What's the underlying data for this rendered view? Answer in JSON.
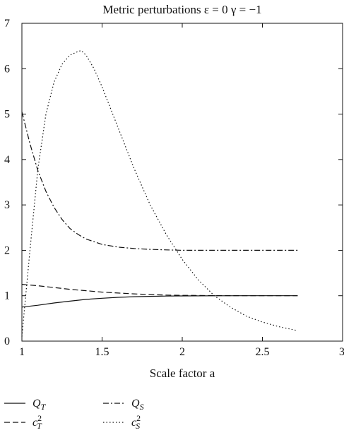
{
  "chart_data": {
    "type": "line",
    "title": "Metric perturbations    ε = 0   γ = −1",
    "xlabel": "Scale factor a",
    "ylabel": "",
    "xlim": [
      1,
      3
    ],
    "ylim": [
      0,
      7
    ],
    "xticks": [
      "1",
      "1.5",
      "2",
      "2.5",
      "3"
    ],
    "yticks": [
      "0",
      "1",
      "2",
      "3",
      "4",
      "5",
      "6",
      "7"
    ],
    "grid": false,
    "legend_position": "bottom",
    "series": [
      {
        "name": "Q_T",
        "label_main": "Q",
        "label_sub": "T",
        "label_sup": "",
        "style": "solid",
        "x": [
          1.0,
          1.1,
          1.2,
          1.3,
          1.4,
          1.5,
          1.6,
          1.7,
          1.8,
          1.9,
          2.0,
          2.2,
          2.4,
          2.6,
          2.72
        ],
        "y": [
          0.75,
          0.79,
          0.84,
          0.88,
          0.92,
          0.945,
          0.965,
          0.978,
          0.987,
          0.993,
          0.996,
          0.999,
          1.0,
          1.0,
          1.0
        ]
      },
      {
        "name": "c_T^2",
        "label_main": "c",
        "label_sub": "T",
        "label_sup": "2",
        "style": "dashed",
        "x": [
          1.0,
          1.1,
          1.2,
          1.3,
          1.4,
          1.5,
          1.6,
          1.7,
          1.8,
          1.9,
          2.0,
          2.2,
          2.4,
          2.6,
          2.72
        ],
        "y": [
          1.25,
          1.22,
          1.18,
          1.14,
          1.11,
          1.08,
          1.06,
          1.04,
          1.025,
          1.015,
          1.008,
          1.003,
          1.0,
          1.0,
          1.0
        ]
      },
      {
        "name": "Q_S",
        "label_main": "Q",
        "label_sub": "S",
        "label_sup": "",
        "style": "dashdot",
        "x": [
          1.0,
          1.05,
          1.1,
          1.15,
          1.2,
          1.25,
          1.3,
          1.35,
          1.4,
          1.5,
          1.6,
          1.7,
          1.8,
          1.9,
          2.0,
          2.2,
          2.4,
          2.6,
          2.72
        ],
        "y": [
          5.05,
          4.35,
          3.75,
          3.3,
          2.95,
          2.68,
          2.48,
          2.35,
          2.25,
          2.13,
          2.07,
          2.04,
          2.02,
          2.01,
          2.0,
          2.0,
          2.0,
          2.0,
          2.0
        ]
      },
      {
        "name": "c_S^2",
        "label_main": "c",
        "label_sub": "S",
        "label_sup": "2",
        "style": "dotted",
        "x": [
          1.0,
          1.05,
          1.1,
          1.15,
          1.2,
          1.25,
          1.3,
          1.35,
          1.37,
          1.4,
          1.45,
          1.5,
          1.6,
          1.7,
          1.8,
          1.9,
          2.0,
          2.1,
          2.2,
          2.3,
          2.4,
          2.5,
          2.6,
          2.72
        ],
        "y": [
          0.1,
          2.0,
          3.8,
          5.0,
          5.7,
          6.1,
          6.3,
          6.38,
          6.4,
          6.3,
          6.0,
          5.6,
          4.7,
          3.8,
          3.0,
          2.35,
          1.8,
          1.35,
          1.0,
          0.75,
          0.55,
          0.42,
          0.32,
          0.23
        ]
      }
    ]
  }
}
